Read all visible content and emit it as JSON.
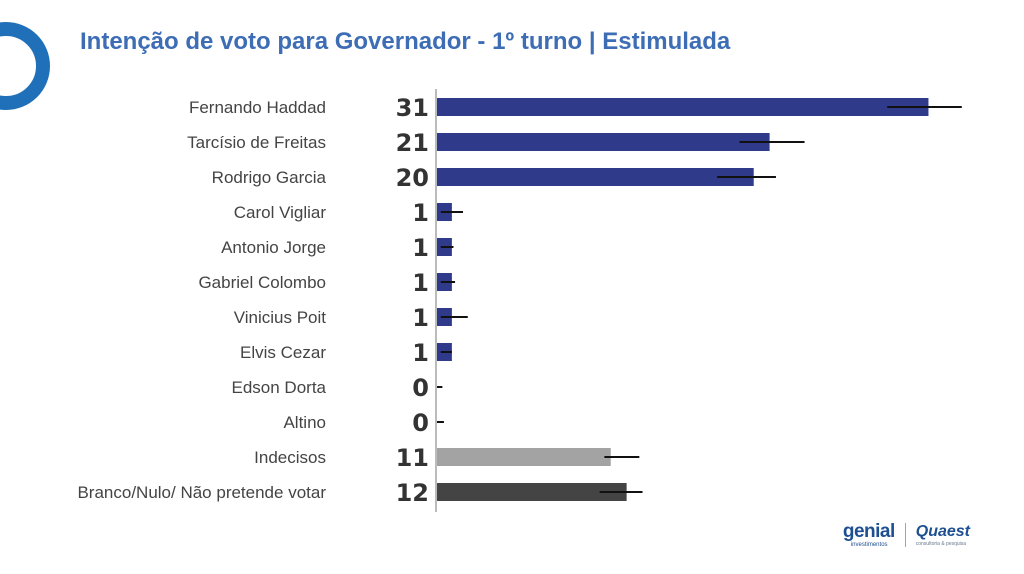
{
  "header": {
    "title": "Intenção de voto para Governador - 1º turno | Estimulada"
  },
  "brands": {
    "genial": {
      "name": "genial",
      "subtitle": "investimentos"
    },
    "quaest": {
      "name": "Quaest",
      "subtitle": "consultoria & pesquisa"
    }
  },
  "chart_data": {
    "type": "bar",
    "orientation": "horizontal",
    "title": "Intenção de voto para Governador - 1º turno | Estimulada",
    "categories": [
      "Fernando Haddad",
      "Tarcísio de Freitas",
      "Rodrigo Garcia",
      "Carol Vigliar",
      "Antonio Jorge",
      "Gabriel Colombo",
      "Vinicius Poit",
      "Elvis Cezar",
      "Edson Dorta",
      "Altino",
      "Indecisos",
      "Branco/Nulo/ Não pretende votar"
    ],
    "values": [
      31,
      21,
      20,
      1,
      1,
      1,
      1,
      1,
      0,
      0,
      11,
      12
    ],
    "value_labels": [
      "31",
      "21",
      "20",
      "1",
      "1",
      "1",
      "1",
      "1",
      "0",
      "0",
      "11",
      "12"
    ],
    "error_range": [
      [
        28.4,
        33.1
      ],
      [
        19.1,
        23.2
      ],
      [
        17.7,
        21.4
      ],
      [
        0.3,
        1.7
      ],
      [
        0.3,
        1.1
      ],
      [
        0.3,
        1.2
      ],
      [
        0.3,
        2.0
      ],
      [
        0.3,
        1.0
      ],
      [
        0,
        0.4
      ],
      [
        0,
        0.5
      ],
      [
        10.6,
        12.8
      ],
      [
        10.3,
        13.0
      ]
    ],
    "colors": [
      "#303a8a",
      "#303a8a",
      "#303a8a",
      "#303a8a",
      "#303a8a",
      "#303a8a",
      "#303a8a",
      "#303a8a",
      "#303a8a",
      "#303a8a",
      "#a3a3a3",
      "#444444"
    ],
    "error_bar_color": "#111111",
    "axis_color": "#bbbbbb",
    "xlim": [
      0,
      35
    ],
    "grid": false,
    "legend": "none"
  }
}
